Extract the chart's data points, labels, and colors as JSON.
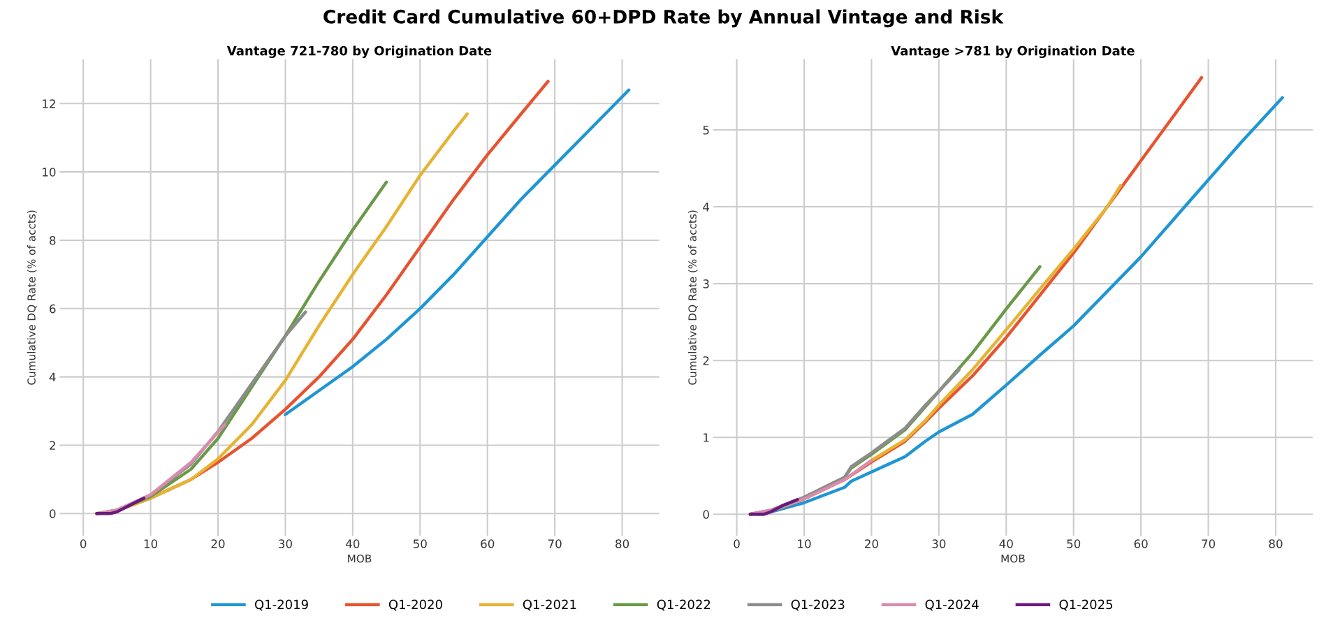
{
  "chart_data": [
    {
      "type": "line",
      "title": "Vantage 721-780 by Origination Date",
      "xlabel": "MOB",
      "ylabel": "Cumulative DQ Rate (% of accts)",
      "annotations": [
        "Credit Card Cumulative 60+DPD Rate by Annual Vintage and Risk"
      ],
      "xlim": [
        -3.5,
        85.5
      ],
      "ylim": [
        -0.65,
        13.3
      ],
      "xticks": [
        0,
        10,
        20,
        30,
        40,
        50,
        60,
        70,
        80
      ],
      "yticks": [
        0,
        2,
        4,
        6,
        8,
        10,
        12
      ],
      "grid": true,
      "marker": "none",
      "line_style": "solid",
      "series": [
        {
          "color": "#1f96d4",
          "x": [
            30,
            35,
            40,
            45,
            50,
            55,
            60,
            65,
            70,
            75,
            81
          ],
          "values": [
            2.9,
            3.6,
            4.3,
            5.1,
            6.0,
            7.0,
            8.1,
            9.2,
            10.2,
            11.2,
            12.4
          ]
        },
        {
          "color": "#e8532f",
          "x": [
            2,
            4,
            5,
            10,
            16,
            20,
            25,
            30,
            35,
            40,
            45,
            50,
            55,
            60,
            65,
            69
          ],
          "values": [
            0,
            0.02,
            0.1,
            0.45,
            1.0,
            1.5,
            2.2,
            3.05,
            4.0,
            5.1,
            6.4,
            7.8,
            9.2,
            10.5,
            11.7,
            12.65
          ]
        },
        {
          "color": "#e6b333",
          "x": [
            2,
            5,
            10,
            16,
            20,
            25,
            30,
            35,
            40,
            45,
            50,
            55,
            57
          ],
          "values": [
            0,
            0.08,
            0.45,
            1.0,
            1.6,
            2.6,
            3.9,
            5.5,
            7.0,
            8.4,
            9.9,
            11.2,
            11.7
          ]
        },
        {
          "color": "#6a9a48",
          "x": [
            2,
            5,
            10,
            16,
            20,
            25,
            30,
            35,
            40,
            45
          ],
          "values": [
            0,
            0.1,
            0.5,
            1.3,
            2.2,
            3.7,
            5.2,
            6.8,
            8.3,
            9.7
          ]
        },
        {
          "color": "#8c8c8c",
          "x": [
            2,
            5,
            10,
            16,
            20,
            25,
            30,
            33
          ],
          "values": [
            0,
            0.1,
            0.55,
            1.45,
            2.4,
            3.8,
            5.2,
            5.9
          ]
        },
        {
          "color": "#d98bb0",
          "x": [
            2,
            5,
            10,
            16,
            21
          ],
          "values": [
            0,
            0.1,
            0.55,
            1.5,
            2.6
          ]
        },
        {
          "color": "#6a1b7c",
          "x": [
            2,
            4,
            5,
            7,
            9
          ],
          "values": [
            0,
            0,
            0.05,
            0.25,
            0.45
          ]
        }
      ]
    },
    {
      "type": "line",
      "title": "Vantage >781 by Origination Date",
      "xlabel": "MOB",
      "ylabel": "Cumulative DQ Rate (% of accts)",
      "xlim": [
        -3.5,
        85.5
      ],
      "ylim": [
        -0.28,
        5.92
      ],
      "xticks": [
        0,
        10,
        20,
        30,
        40,
        50,
        60,
        70,
        80
      ],
      "yticks": [
        0,
        1,
        2,
        3,
        4,
        5
      ],
      "grid": true,
      "legend": "bottom",
      "marker": "none",
      "line_style": "solid",
      "series": [
        {
          "name": "Q1-2019",
          "color": "#1f96d4",
          "x": [
            2,
            4,
            5,
            10,
            16,
            17,
            20,
            25,
            28,
            30,
            35,
            40,
            45,
            50,
            55,
            60,
            65,
            70,
            75,
            81
          ],
          "values": [
            0,
            0,
            0.03,
            0.15,
            0.35,
            0.43,
            0.55,
            0.75,
            0.95,
            1.07,
            1.3,
            1.68,
            2.07,
            2.45,
            2.9,
            3.35,
            3.85,
            4.35,
            4.85,
            5.42
          ]
        },
        {
          "name": "Q1-2020",
          "color": "#e8532f",
          "x": [
            2,
            5,
            10,
            16,
            20,
            25,
            28,
            30,
            35,
            40,
            45,
            50,
            55,
            60,
            65,
            69
          ],
          "values": [
            0,
            0.04,
            0.2,
            0.45,
            0.68,
            0.95,
            1.2,
            1.38,
            1.8,
            2.3,
            2.85,
            3.4,
            4.0,
            4.6,
            5.2,
            5.68
          ]
        },
        {
          "name": "Q1-2021",
          "color": "#e6b333",
          "x": [
            2,
            5,
            10,
            16,
            20,
            25,
            28,
            30,
            35,
            40,
            45,
            50,
            55,
            57
          ],
          "values": [
            0,
            0.04,
            0.2,
            0.45,
            0.7,
            0.97,
            1.22,
            1.42,
            1.88,
            2.4,
            2.93,
            3.45,
            4.0,
            4.28
          ]
        },
        {
          "name": "Q1-2022",
          "color": "#6a9a48",
          "x": [
            2,
            5,
            10,
            16,
            17,
            20,
            25,
            28,
            30,
            35,
            40,
            45
          ],
          "values": [
            0,
            0.05,
            0.22,
            0.48,
            0.6,
            0.78,
            1.1,
            1.4,
            1.6,
            2.1,
            2.67,
            3.22
          ]
        },
        {
          "name": "Q1-2023",
          "color": "#8c8c8c",
          "x": [
            2,
            5,
            10,
            16,
            17,
            20,
            25,
            28,
            30,
            33
          ],
          "values": [
            0,
            0.05,
            0.22,
            0.48,
            0.62,
            0.8,
            1.12,
            1.42,
            1.6,
            1.88
          ]
        },
        {
          "name": "Q1-2024",
          "color": "#d98bb0",
          "x": [
            2,
            5,
            10,
            16,
            20
          ],
          "values": [
            0,
            0.05,
            0.2,
            0.45,
            0.7
          ]
        },
        {
          "name": "Q1-2025",
          "color": "#6a1b7c",
          "x": [
            2,
            4,
            5,
            7,
            9
          ],
          "values": [
            0,
            0,
            0.03,
            0.12,
            0.19
          ]
        }
      ]
    }
  ]
}
